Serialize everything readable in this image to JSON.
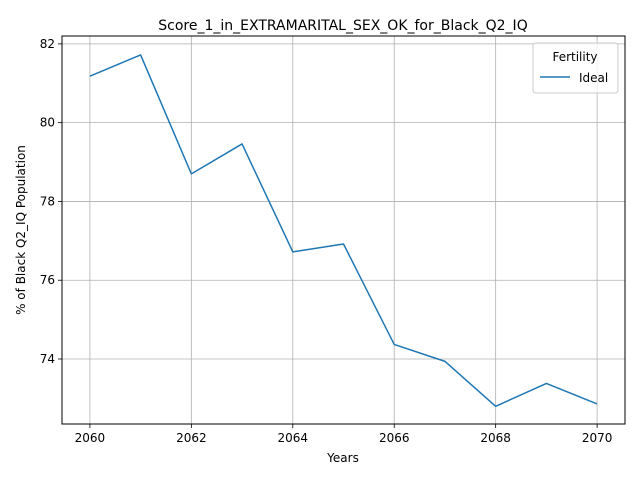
{
  "chart_data": {
    "type": "line",
    "title": "Score_1_in_EXTRAMARITAL_SEX_OK_for_Black_Q2_IQ",
    "xlabel": "Years",
    "ylabel": "% of Black Q2_IQ Population",
    "xlim": [
      2059.45,
      2070.55
    ],
    "ylim": [
      72.35,
      82.2
    ],
    "xticks": [
      2060,
      2062,
      2064,
      2066,
      2068,
      2070
    ],
    "yticks": [
      74,
      76,
      78,
      80,
      82
    ],
    "grid": true,
    "legend": {
      "title": "Fertility",
      "position": "top-right"
    },
    "series": [
      {
        "name": "Ideal",
        "color": "#1f77b4",
        "x": [
          2060,
          2061,
          2062,
          2063,
          2064,
          2065,
          2066,
          2067,
          2068,
          2069,
          2070
        ],
        "y": [
          81.18,
          81.72,
          78.7,
          79.46,
          76.72,
          76.92,
          74.37,
          73.94,
          72.8,
          73.38,
          72.86
        ]
      }
    ]
  }
}
